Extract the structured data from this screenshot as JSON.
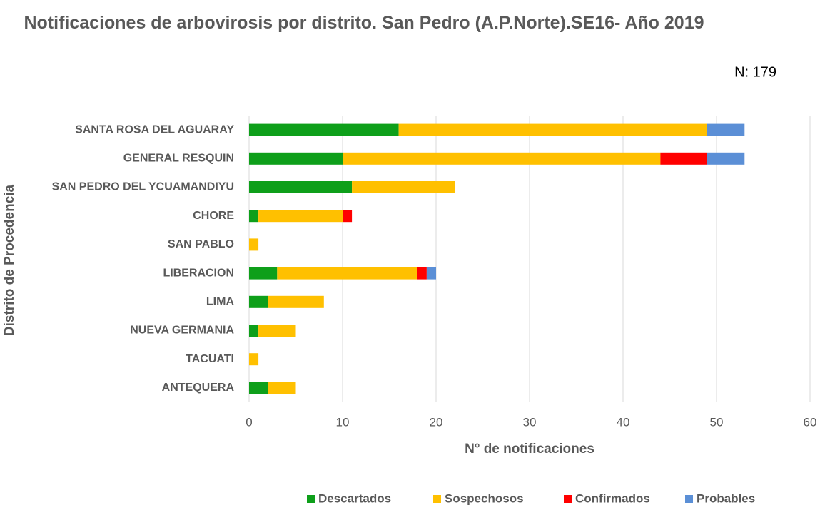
{
  "chart_data": {
    "type": "bar",
    "orientation": "horizontal",
    "stacked": true,
    "title": "Notificaciones de arbovirosis por distrito. San Pedro (A.P.Norte).SE16- Año 2019",
    "annotation": "N: 179",
    "xlabel": "N° de notificaciones",
    "ylabel": "Distrito de Procedencia",
    "categories": [
      "SANTA ROSA DEL AGUARAY",
      "GENERAL RESQUIN",
      "SAN PEDRO DEL YCUAMANDIYU",
      "CHORE",
      "SAN PABLO",
      "LIBERACION",
      "LIMA",
      "NUEVA GERMANIA",
      "TACUATI",
      "ANTEQUERA"
    ],
    "series": [
      {
        "name": "Descartados",
        "color": "#0e9f1a",
        "values": [
          16,
          10,
          11,
          1,
          0,
          3,
          2,
          1,
          0,
          2
        ]
      },
      {
        "name": "Sospechosos",
        "color": "#ffc000",
        "values": [
          33,
          34,
          11,
          9,
          1,
          15,
          6,
          4,
          1,
          3
        ]
      },
      {
        "name": "Confirmados",
        "color": "#ff0000",
        "values": [
          0,
          5,
          0,
          1,
          0,
          1,
          0,
          0,
          0,
          0
        ]
      },
      {
        "name": "Probables",
        "color": "#5b8fd6",
        "values": [
          4,
          4,
          0,
          0,
          0,
          1,
          0,
          0,
          0,
          0
        ]
      }
    ],
    "xlim": [
      0,
      60
    ],
    "xticks": [
      0,
      10,
      20,
      30,
      40,
      50,
      60
    ],
    "grid": true,
    "legend": "bottom"
  }
}
